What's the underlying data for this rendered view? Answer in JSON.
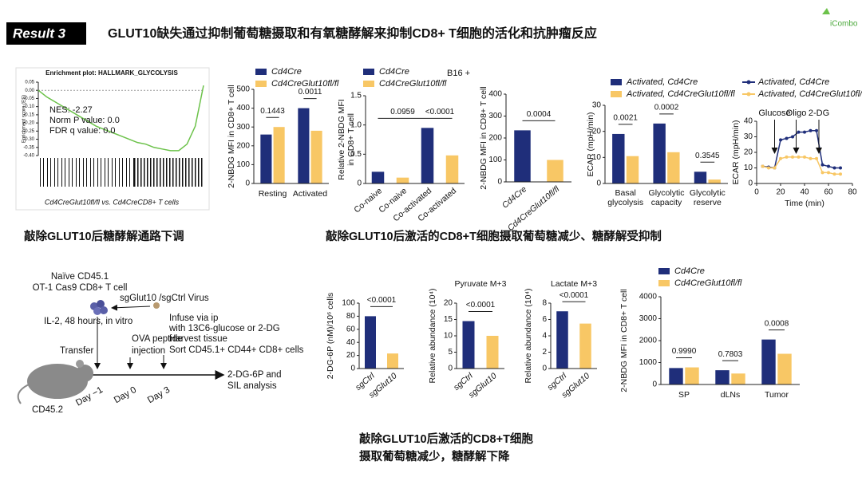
{
  "header": {
    "badge": "Result 3",
    "title": "GLUT10缺失通过抑制葡萄糖摄取和有氧糖酵解来抑制CD8+ T细胞的活化和抗肿瘤反应",
    "logo": "iCombo"
  },
  "captions": [
    "敲除GLUT10后糖酵解通路下调",
    "敲除GLUT10后激活的CD8+T细胞摄取葡萄糖减少、糖酵解受抑制",
    "敲除GLUT10后激活的CD8+T细胞",
    "摄取葡萄糖减少，糖酵解下降"
  ],
  "diagram": {
    "cell": "Naïve CD45.1",
    "cell2": "OT-1 Cas9 CD8+  T cell",
    "virus": "sgGlut10 /sgCtrl Virus",
    "culture": "IL-2, 48 hours, in vitro",
    "transfer": "Transfer",
    "ova": [
      "OVA peptide",
      "injection"
    ],
    "infuse": [
      "Infuse via ip",
      "with 13C6-glucose or 2-DG",
      "Harvest tissue",
      "Sort CD45.1+ CD44+ CD8+ cells"
    ],
    "analysis": [
      "2-DG-6P  and",
      "SIL analysis"
    ],
    "days": [
      "Day −1",
      "Day 0",
      "Day 3"
    ],
    "mouse": "CD45.2"
  },
  "chart_data": [
    {
      "type": "line",
      "title": "Enrichment plot: HALLMARK_GLYCOLYSIS",
      "ylabel": "Enrichment score (ES)",
      "stats": [
        "NES: -2.27",
        "Norm P value: 0.0",
        "FDR q value: 0.0"
      ],
      "comparison": "Cd4CreGlut10fl/fl vs. Cd4CreCD8+ T cells",
      "color": "#6cc24a",
      "x": [
        0,
        5,
        10,
        15,
        20,
        25,
        30,
        35,
        40,
        45,
        50,
        55,
        60,
        65,
        70,
        75,
        80,
        85,
        90,
        95,
        100
      ],
      "values": [
        0,
        -0.04,
        -0.07,
        -0.1,
        -0.13,
        -0.16,
        -0.19,
        -0.22,
        -0.24,
        -0.26,
        -0.28,
        -0.3,
        -0.32,
        -0.33,
        -0.35,
        -0.36,
        -0.37,
        -0.37,
        -0.33,
        -0.22,
        0.03
      ],
      "xlim": [
        0,
        100
      ],
      "ylim": [
        -0.4,
        0.05
      ],
      "yticks": [
        0.05,
        {
          "value": 0,
          "label": "0.00"
        },
        -0.05,
        {
          "value": -0.1,
          "label": "-0.10"
        },
        -0.15,
        {
          "value": -0.2,
          "label": "-0.20"
        },
        -0.25,
        {
          "value": -0.3,
          "label": "-0.30"
        },
        -0.35,
        {
          "value": -0.4,
          "label": "-0.40"
        }
      ]
    },
    {
      "type": "bar",
      "ylabel": "2-NBDG MFI in CD8+ T cell",
      "categories": [
        "Resting",
        "Activated"
      ],
      "series": [
        {
          "name": "Cd4Cre",
          "color": "#1f2e7a",
          "values": [
            260,
            400
          ]
        },
        {
          "name": "Cd4CreGlut10fl/fl",
          "color": "#f8c765",
          "values": [
            300,
            280
          ]
        }
      ],
      "ylim": [
        0,
        500
      ],
      "yticks": [
        0,
        100,
        200,
        300,
        400,
        500
      ],
      "pvalues": [
        "0.1443",
        "0.0011"
      ]
    },
    {
      "type": "bar",
      "subtitle": "B16 +",
      "ylabel": [
        "Relative 2-NBDG MFI",
        "in CD8+ T cell"
      ],
      "categories": [
        "Co-naive",
        "Co-naive",
        "Co-activated",
        "Co-activated"
      ],
      "values": [
        0.2,
        0.1,
        0.95,
        0.48
      ],
      "colors": [
        "#1f2e7a",
        "#f8c765",
        "#1f2e7a",
        "#f8c765"
      ],
      "legend": [
        {
          "name": "Cd4Cre",
          "color": "#1f2e7a"
        },
        {
          "name": "Cd4CreGlut10fl/fl",
          "color": "#f8c765"
        }
      ],
      "ylim": [
        0,
        1.5
      ],
      "yticks": [
        0,
        0.5,
        {
          "value": 1,
          "label": "1.0"
        },
        1.5
      ],
      "pvalues": [
        "0.0959",
        "<0.0001"
      ]
    },
    {
      "type": "bar",
      "ylabel": "2-NBDG MFI in CD8+ T cell",
      "categories": [
        "Cd4Cre",
        "Cd4CreGlut10fl/fl"
      ],
      "values": [
        235,
        100
      ],
      "colors": [
        "#1f2e7a",
        "#f8c765"
      ],
      "ylim": [
        0,
        400
      ],
      "yticks": [
        0,
        100,
        200,
        300,
        400
      ],
      "pvalues": [
        "0.0004"
      ]
    },
    {
      "type": "bar",
      "ylabel": "ECAR (mpH/min)",
      "categories": [
        [
          "Basal",
          "glycolysis"
        ],
        [
          "Glycolytic",
          "capacity"
        ],
        [
          "Glycolytic",
          "reserve"
        ]
      ],
      "series": [
        {
          "name": "Activated, Cd4Cre",
          "color": "#1f2e7a",
          "values": [
            19,
            23,
            4.5
          ]
        },
        {
          "name": "Activated, Cd4CreGlut10fl/fl",
          "color": "#f8c765",
          "values": [
            10.5,
            12,
            1.5
          ]
        }
      ],
      "ylim": [
        0,
        30
      ],
      "yticks": [
        0,
        10,
        20,
        30
      ],
      "pvalues": [
        "0.0021",
        "0.0002",
        "0.3545"
      ]
    },
    {
      "type": "line",
      "ylabel": "ECAR (mpH/min)",
      "xlabel": "Time (min)",
      "x": [
        5,
        10,
        15,
        20,
        25,
        30,
        35,
        40,
        45,
        50,
        55,
        60,
        65,
        70
      ],
      "series": [
        {
          "name": "Activated, Cd4Cre",
          "color": "#1f2e7a",
          "values": [
            11,
            10.5,
            10,
            28,
            29,
            30,
            33,
            33,
            34,
            34,
            12,
            11,
            10,
            10
          ]
        },
        {
          "name": "Activated, Cd4CreGlut10fl/fl",
          "color": "#f8c765",
          "values": [
            11,
            10,
            10,
            16,
            17,
            17,
            17,
            17,
            16,
            16,
            7,
            7,
            6,
            6
          ]
        }
      ],
      "annotations": [
        {
          "text": "Glucose",
          "x": 15
        },
        {
          "text": "Oligo",
          "x": 33
        },
        {
          "text": "2-DG",
          "x": 52
        }
      ],
      "xlim": [
        0,
        80
      ],
      "xticks": [
        0,
        20,
        40,
        60,
        80
      ],
      "ylim": [
        0,
        40
      ],
      "yticks": [
        0,
        10,
        20,
        30,
        40
      ]
    },
    {
      "type": "bar",
      "ylabel": "2-DG-6P (nM)/10⁶ cells",
      "categories": [
        "sgCtrl",
        "sgGlut10"
      ],
      "values": [
        80,
        23
      ],
      "colors": [
        "#1f2e7a",
        "#f8c765"
      ],
      "ylim": [
        0,
        100
      ],
      "yticks": [
        0,
        20,
        40,
        60,
        80,
        100
      ],
      "pvalues": [
        "<0.0001"
      ]
    },
    {
      "type": "bar",
      "title": "Pyruvate M+3",
      "ylabel": "Relative abundance (10⁴)",
      "categories": [
        "sgCtrl",
        "sgGlut10"
      ],
      "values": [
        14.5,
        10
      ],
      "colors": [
        "#1f2e7a",
        "#f8c765"
      ],
      "ylim": [
        0,
        20
      ],
      "yticks": [
        0,
        5,
        10,
        15,
        20
      ],
      "pvalues": [
        "<0.0001"
      ]
    },
    {
      "type": "bar",
      "title": "Lactate M+3",
      "ylabel": "Relative abundance (10⁴)",
      "categories": [
        "sgCtrl",
        "sgGlut10"
      ],
      "values": [
        7,
        5.5
      ],
      "colors": [
        "#1f2e7a",
        "#f8c765"
      ],
      "ylim": [
        0,
        8
      ],
      "yticks": [
        0,
        2,
        4,
        6,
        8
      ],
      "pvalues": [
        "<0.0001"
      ]
    },
    {
      "type": "bar",
      "ylabel": "2-NBDG MFI in CD8+ T cell",
      "categories": [
        "SP",
        "dLNs",
        "Tumor"
      ],
      "series": [
        {
          "name": "Cd4Cre",
          "color": "#1f2e7a",
          "values": [
            750,
            650,
            2050
          ]
        },
        {
          "name": "Cd4CreGlut10fl/fl",
          "color": "#f8c765",
          "values": [
            780,
            500,
            1400
          ]
        }
      ],
      "ylim": [
        0,
        4000
      ],
      "yticks": [
        0,
        1000,
        2000,
        3000,
        4000
      ],
      "pvalues": [
        "0.9990",
        "0.7803",
        "0.0008"
      ]
    }
  ]
}
